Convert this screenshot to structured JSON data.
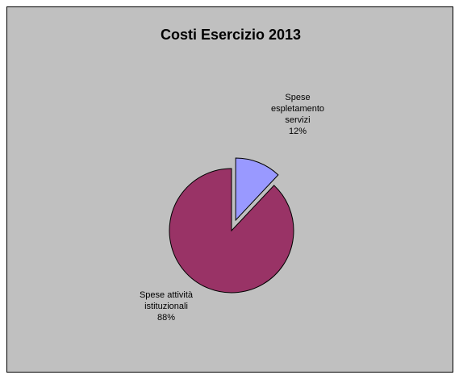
{
  "chart_data": {
    "type": "pie",
    "title": "Costi Esercizio 2013",
    "categories": [
      "Spese espletamento servizi",
      "Spese attività istituzionali"
    ],
    "values": [
      12,
      88
    ],
    "data_labels": [
      [
        "Spese",
        "espletamento",
        "servizi",
        "12%"
      ],
      [
        "Spese attività",
        "istituzionali",
        "88%"
      ]
    ],
    "colors": [
      "#9999ff",
      "#993366"
    ],
    "exploded_slice": "Spese espletamento servizi",
    "background_color": "#c0c0c0",
    "legend": "none"
  }
}
